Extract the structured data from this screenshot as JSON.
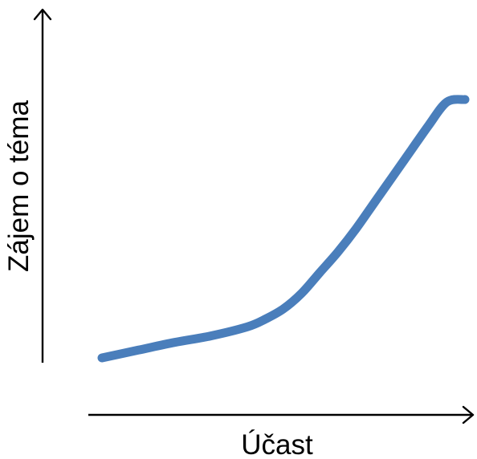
{
  "chart_data": {
    "type": "line",
    "title": "",
    "xlabel": "Účast",
    "ylabel": "Zájem o téma",
    "x_ticks": "none",
    "y_ticks": "none",
    "grid": false,
    "legend": "none",
    "xlim": [
      0,
      100
    ],
    "ylim": [
      0,
      100
    ],
    "series": [
      {
        "color": "#4a7ebb",
        "x": [
          0,
          10,
          20,
          30,
          40,
          45,
          50,
          55,
          60,
          65,
          70,
          75,
          80,
          85,
          90,
          95,
          100
        ],
        "y": [
          0,
          3,
          6,
          8.5,
          12,
          15,
          19,
          25,
          33,
          41,
          50,
          60,
          70,
          80,
          90,
          99,
          100
        ]
      }
    ],
    "style": {
      "axis_color": "#000000",
      "background": "#ffffff"
    }
  }
}
